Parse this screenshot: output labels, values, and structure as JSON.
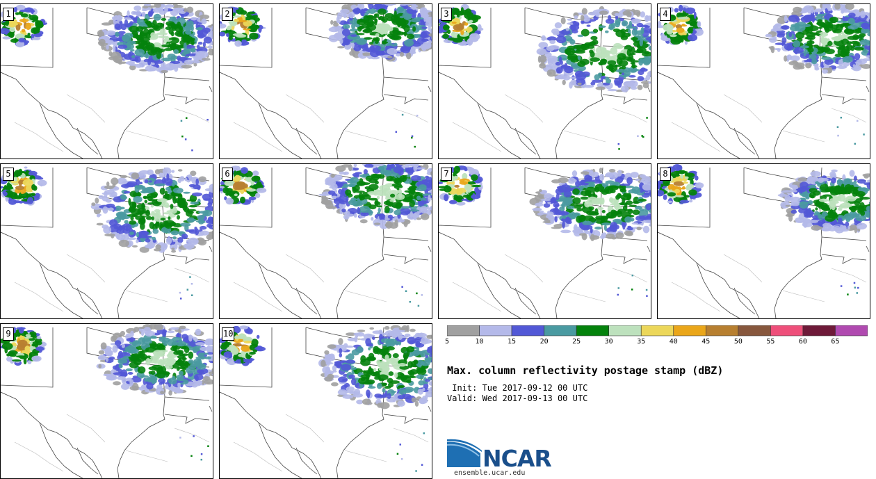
{
  "panels": [
    {
      "label": "1"
    },
    {
      "label": "2"
    },
    {
      "label": "3"
    },
    {
      "label": "4"
    },
    {
      "label": "5"
    },
    {
      "label": "6"
    },
    {
      "label": "7"
    },
    {
      "label": "8"
    },
    {
      "label": "9"
    },
    {
      "label": "10"
    }
  ],
  "colorbar": {
    "colors": [
      "#a0a0a0",
      "#b4b9e9",
      "#5258d6",
      "#4a9aa1",
      "#04820c",
      "#bde1bd",
      "#ecd75a",
      "#eaa61a",
      "#b77f30",
      "#87573d",
      "#ee4f7a",
      "#6e1a39",
      "#b04ab0"
    ],
    "ticks": [
      "5",
      "10",
      "15",
      "20",
      "25",
      "30",
      "35",
      "40",
      "45",
      "50",
      "55",
      "60",
      "65"
    ]
  },
  "title": "Max. column reflectivity postage stamp (dBZ)",
  "init": " Init: Tue 2017-09-12 00 UTC",
  "valid": "Valid: Wed 2017-09-13 00 UTC",
  "logo": {
    "name": "NCAR",
    "url": "ensemble.ucar.edu"
  }
}
